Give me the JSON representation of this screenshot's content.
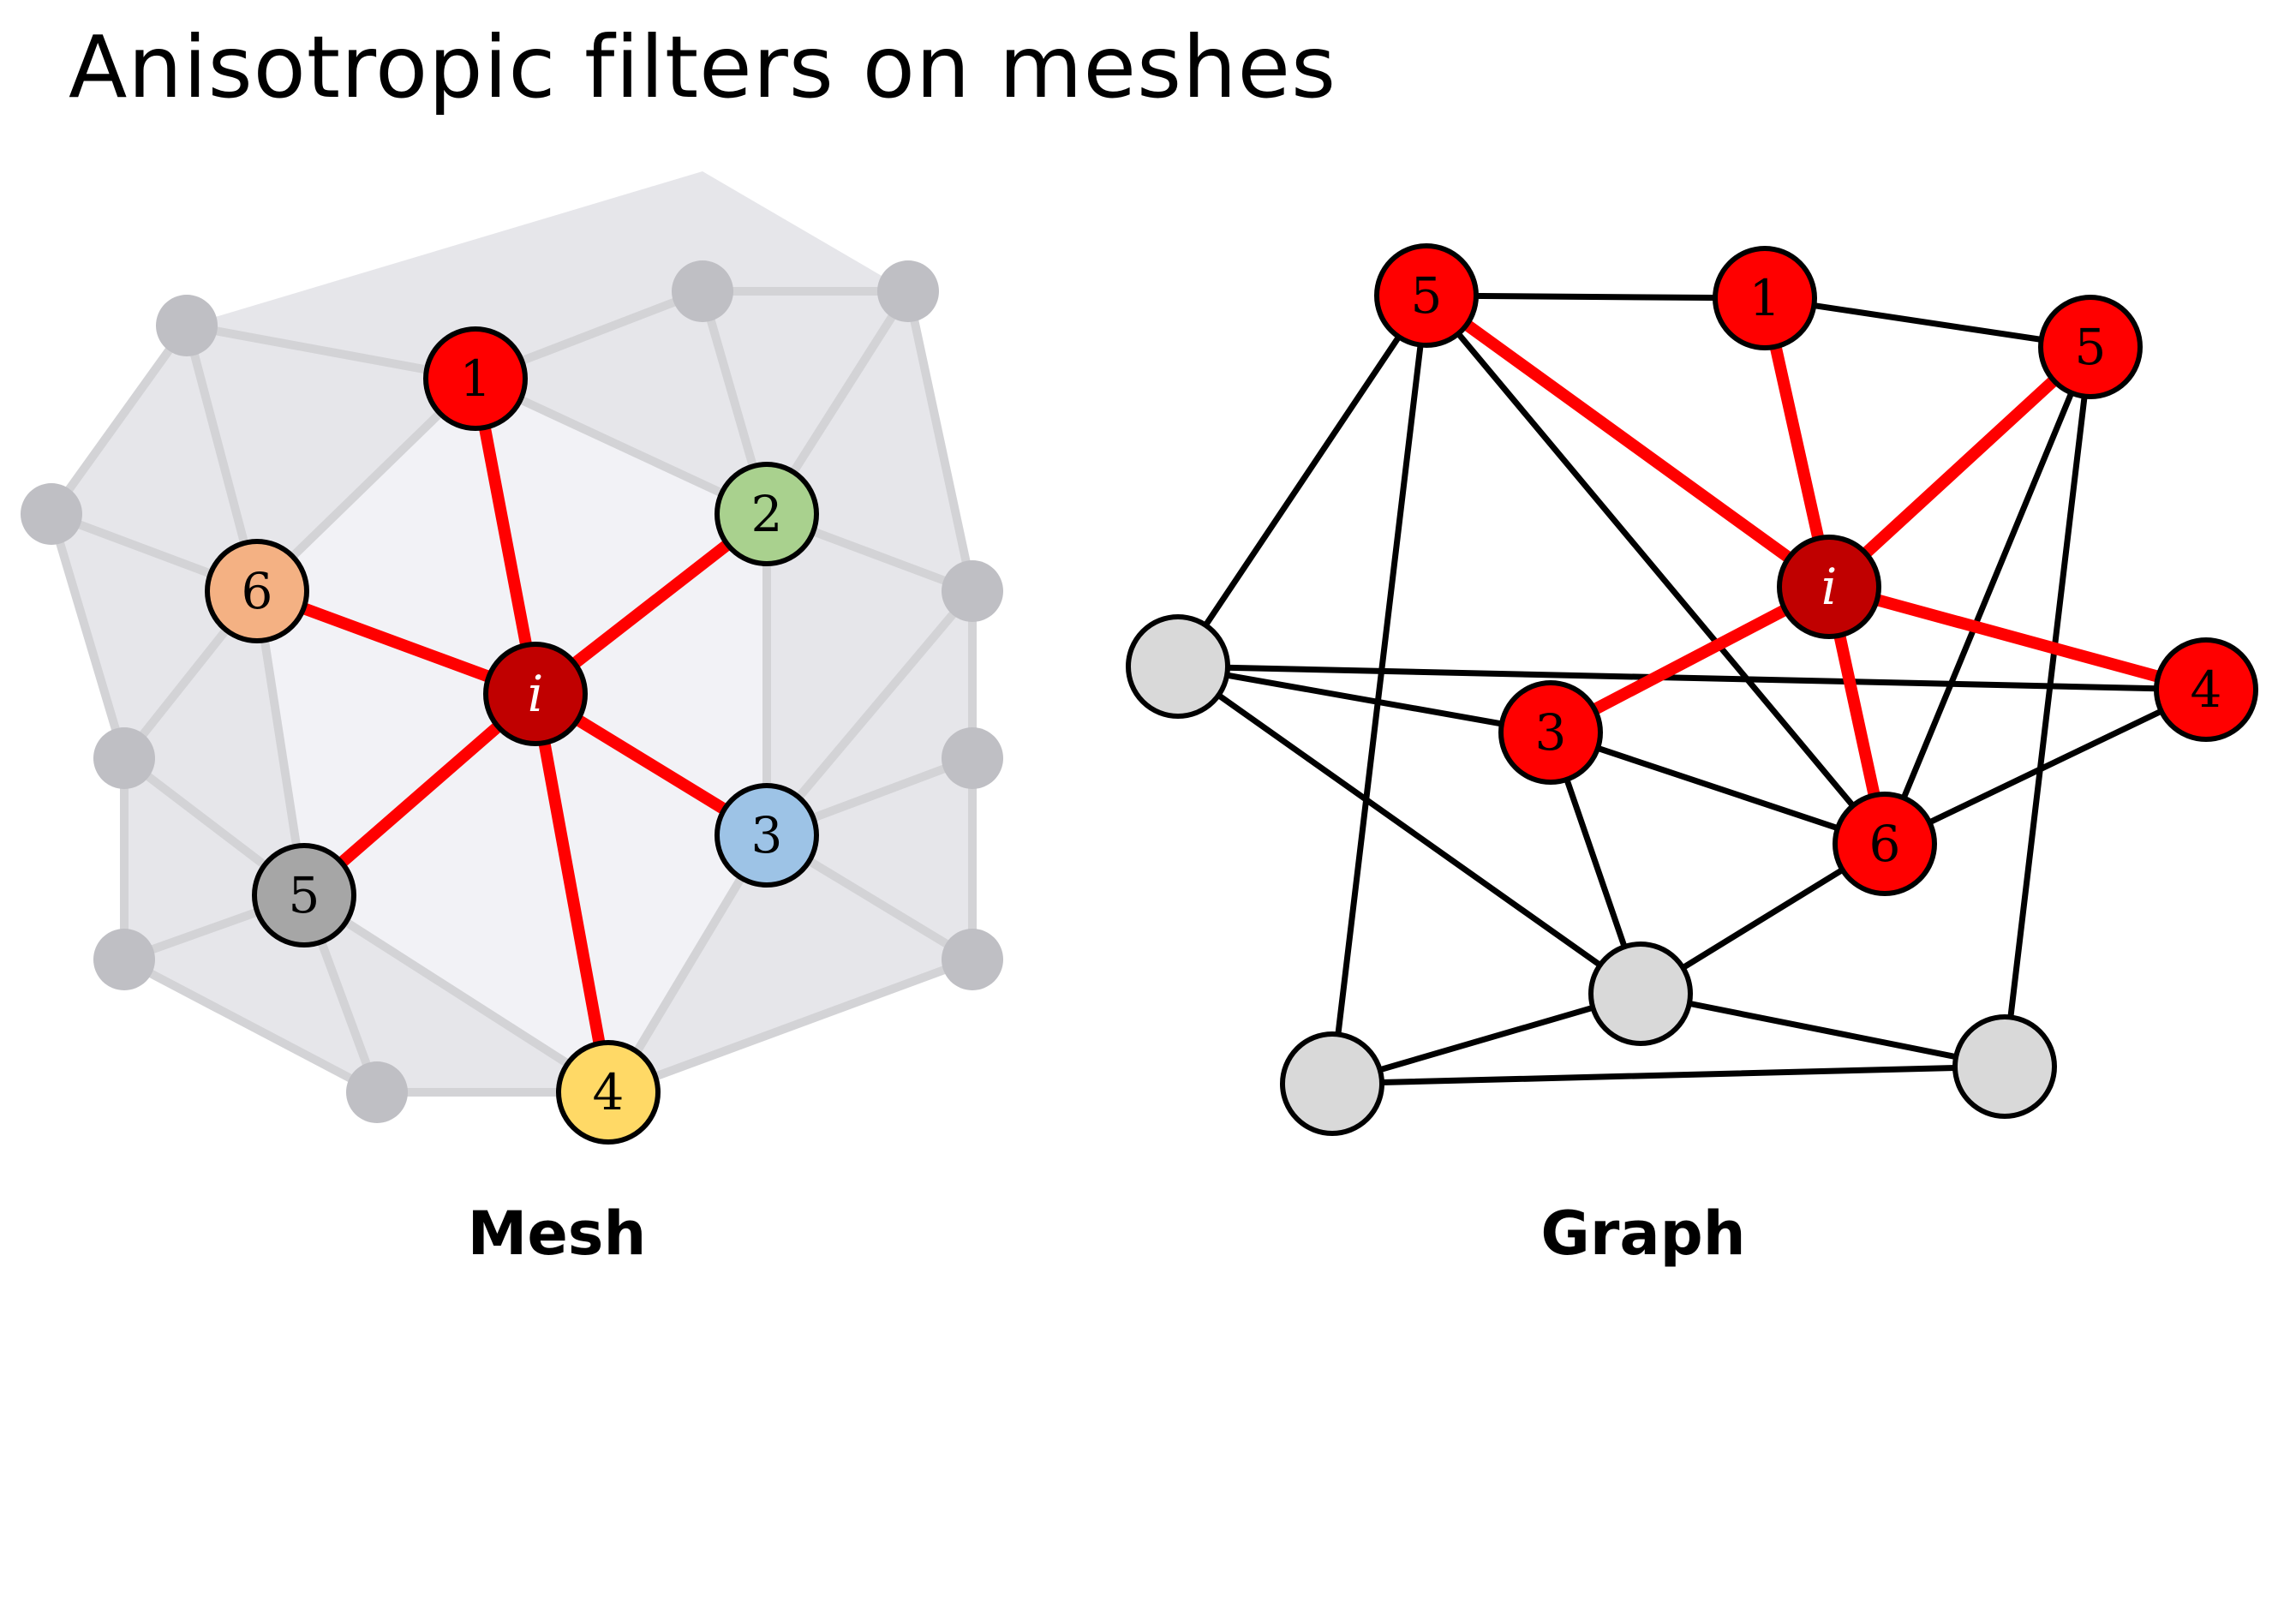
{
  "title": "Anisotropic filters on meshes",
  "mesh": {
    "label": "Mesh",
    "center_label": "i",
    "neighbor_labels": [
      "1",
      "2",
      "3",
      "4",
      "5",
      "6"
    ]
  },
  "graph": {
    "label": "Graph",
    "center_label": "i",
    "neighbor_labels": [
      "5",
      "1",
      "5",
      "4",
      "3",
      "6"
    ]
  },
  "colors": {
    "highlight_edge": "#ff0000",
    "center_node": "#c00000",
    "red_node": "#ff0000",
    "node_1": "#ff0000",
    "node_2": "#a9d18e",
    "node_3": "#9dc3e6",
    "node_4": "#ffd966",
    "node_5": "#a6a6a6",
    "node_6": "#f4b183",
    "mesh_vertex": "#bfbfc4",
    "mesh_edge": "#d3d3d6",
    "graph_node": "#d9d9d9",
    "graph_edge": "#000000"
  }
}
